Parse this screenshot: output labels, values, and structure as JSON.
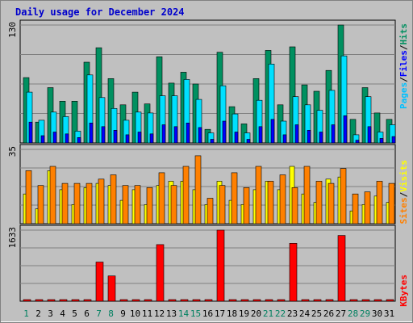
{
  "chart_data": {
    "type": "bar",
    "title": "Daily usage for December 2024",
    "categories": [
      "1",
      "2",
      "3",
      "4",
      "5",
      "6",
      "7",
      "8",
      "9",
      "10",
      "11",
      "12",
      "13",
      "14",
      "15",
      "16",
      "17",
      "18",
      "19",
      "20",
      "21",
      "22",
      "23",
      "24",
      "25",
      "26",
      "27",
      "28",
      "29",
      "30",
      "31"
    ],
    "weekend_days": [
      1,
      7,
      8,
      14,
      15,
      21,
      22,
      28,
      29
    ],
    "panels": [
      {
        "name": "hits-files-pages",
        "scale_label": "130",
        "ymax": 130,
        "legend": [
          {
            "text": "Pages",
            "color": "#00c0ff"
          },
          {
            "text": "/",
            "color": "#000000"
          },
          {
            "text": "Files",
            "color": "#0000ff"
          },
          {
            "text": "/",
            "color": "#000000"
          },
          {
            "text": "Hits",
            "color": "#009060"
          }
        ],
        "series": [
          {
            "name": "Hits",
            "color": "#009060",
            "values": [
              72,
              23,
              61,
              46,
              46,
              89,
              105,
              71,
              42,
              56,
              43,
              95,
              66,
              78,
              65,
              15,
              100,
              40,
              21,
              71,
              102,
              42,
              106,
              64,
              57,
              80,
              130,
              26,
              61,
              33,
              26
            ]
          },
          {
            "name": "Files",
            "color": "#00e0ff",
            "values": [
              56,
              25,
              34,
              29,
              13,
              75,
              50,
              38,
              25,
              34,
              33,
              52,
              52,
              70,
              48,
              11,
              63,
              32,
              11,
              47,
              87,
              24,
              51,
              42,
              36,
              58,
              96,
              9,
              51,
              12,
              20
            ]
          },
          {
            "name": "Pages",
            "color": "#0000ff",
            "values": [
              23,
              8,
              12,
              10,
              6,
              22,
              18,
              14,
              9,
              12,
              10,
              20,
              18,
              22,
              17,
              4,
              24,
              12,
              4,
              18,
              26,
              9,
              20,
              14,
              12,
              20,
              30,
              3,
              18,
              5,
              7
            ]
          }
        ]
      },
      {
        "name": "visits-sites",
        "scale_label": "35",
        "ymax": 35,
        "legend": [
          {
            "text": "Sites",
            "color": "#ff8000"
          },
          {
            "text": "/",
            "color": "#000000"
          },
          {
            "text": "Visits",
            "color": "#ffff00"
          }
        ],
        "series": [
          {
            "name": "Visits",
            "color": "#ffff00",
            "values": [
              14,
              7,
              25,
              16,
              9,
              17,
              19,
              18,
              11,
              16,
              9,
              18,
              20,
              20,
              16,
              9,
              20,
              11,
              9,
              16,
              20,
              16,
              27,
              14,
              10,
              21,
              22,
              6,
              9,
              13,
              10
            ]
          },
          {
            "name": "Sites",
            "color": "#ff8000",
            "values": [
              25,
              18,
              27,
              19,
              19,
              19,
              21,
              23,
              18,
              18,
              17,
              24,
              18,
              27,
              32,
              12,
              18,
              24,
              17,
              27,
              20,
              23,
              17,
              27,
              20,
              19,
              26,
              14,
              15,
              20,
              19
            ]
          }
        ]
      },
      {
        "name": "kbytes",
        "scale_label": "1633",
        "ymax": 1633,
        "legend": [
          {
            "text": "KBytes",
            "color": "#ff0000"
          }
        ],
        "series": [
          {
            "name": "KBytes",
            "color": "#ff0000",
            "values": [
              10,
              12,
              30,
              15,
              10,
              12,
              900,
              580,
              30,
              30,
              30,
              1300,
              30,
              30,
              12,
              10,
              1633,
              12,
              12,
              30,
              30,
              12,
              1330,
              30,
              12,
              10,
              1510,
              12,
              10,
              12,
              10
            ]
          }
        ]
      }
    ]
  }
}
